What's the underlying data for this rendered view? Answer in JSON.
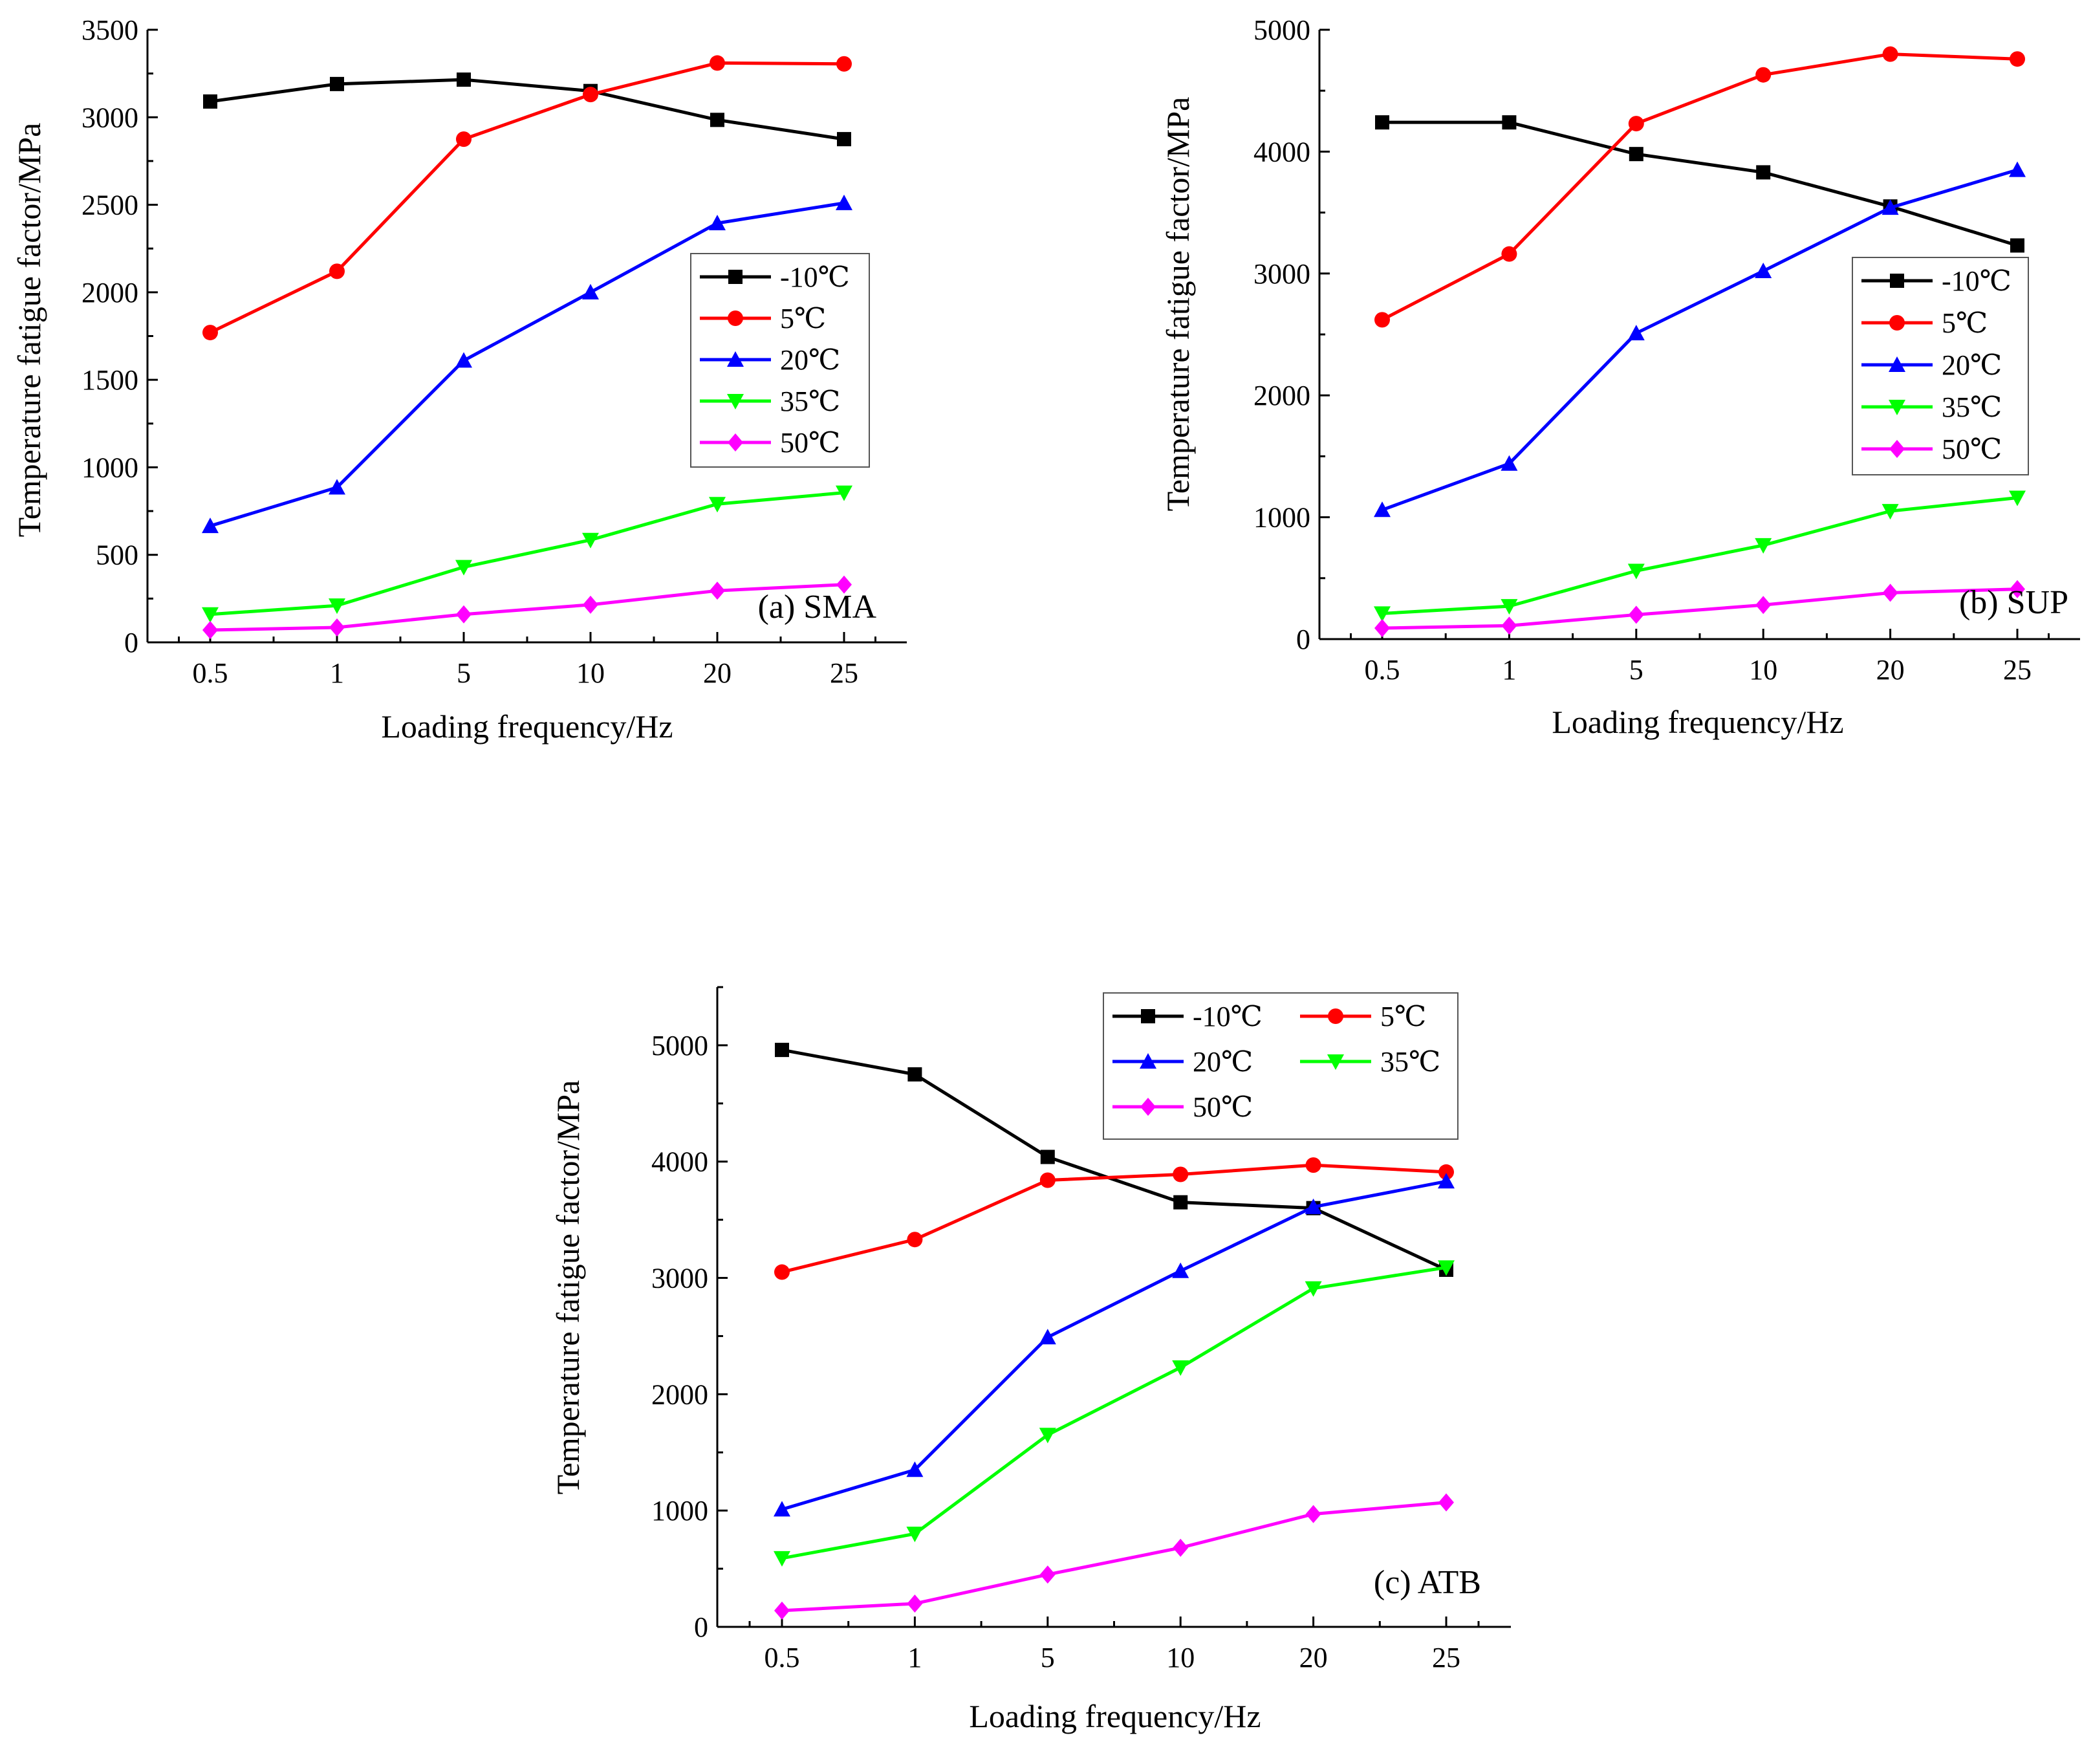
{
  "chart_data": [
    {
      "type": "line",
      "panel_label": "(a)  SMA",
      "xlabel": "Loading frequency/Hz",
      "ylabel": "Temperature fatigue factor/MPa",
      "categories": [
        "0.5",
        "1",
        "5",
        "10",
        "20",
        "25"
      ],
      "ylim": [
        0,
        3500
      ],
      "yticks": [
        0,
        500,
        1000,
        1500,
        2000,
        2500,
        3000,
        3500
      ],
      "legend_position": "center-right",
      "series": [
        {
          "name": "-10℃",
          "color": "#000000",
          "marker": "square",
          "values": [
            3090,
            3190,
            3215,
            3150,
            2985,
            2875
          ]
        },
        {
          "name": "5℃",
          "color": "#ff0000",
          "marker": "circle",
          "values": [
            1770,
            2120,
            2875,
            3130,
            3310,
            3305
          ]
        },
        {
          "name": "20℃",
          "color": "#0000ff",
          "marker": "triangle-up",
          "values": [
            665,
            885,
            1610,
            2000,
            2395,
            2510
          ]
        },
        {
          "name": "35℃",
          "color": "#00ff00",
          "marker": "triangle-down",
          "values": [
            160,
            210,
            430,
            585,
            790,
            855
          ]
        },
        {
          "name": "50℃",
          "color": "#ff00ff",
          "marker": "diamond",
          "values": [
            70,
            85,
            160,
            215,
            295,
            330
          ]
        }
      ]
    },
    {
      "type": "line",
      "panel_label": "(b)  SUP",
      "xlabel": "Loading frequency/Hz",
      "ylabel": "Temperature fatigue factor/MPa",
      "categories": [
        "0.5",
        "1",
        "5",
        "10",
        "20",
        "25"
      ],
      "ylim": [
        0,
        5000
      ],
      "yticks": [
        0,
        1000,
        2000,
        3000,
        4000,
        5000
      ],
      "legend_position": "center-right",
      "series": [
        {
          "name": "-10℃",
          "color": "#000000",
          "marker": "square",
          "values": [
            4240,
            4240,
            3980,
            3830,
            3550,
            3230
          ]
        },
        {
          "name": "5℃",
          "color": "#ff0000",
          "marker": "circle",
          "values": [
            2620,
            3160,
            4230,
            4630,
            4800,
            4760
          ]
        },
        {
          "name": "20℃",
          "color": "#0000ff",
          "marker": "triangle-up",
          "values": [
            1060,
            1440,
            2510,
            3020,
            3540,
            3850
          ]
        },
        {
          "name": "35℃",
          "color": "#00ff00",
          "marker": "triangle-down",
          "values": [
            210,
            270,
            560,
            770,
            1050,
            1160
          ]
        },
        {
          "name": "50℃",
          "color": "#ff00ff",
          "marker": "diamond",
          "values": [
            90,
            110,
            200,
            280,
            380,
            410
          ]
        }
      ]
    },
    {
      "type": "line",
      "panel_label": "(c)  ATB",
      "xlabel": "Loading frequency/Hz",
      "ylabel": "Temperature fatigue factor/MPa",
      "categories": [
        "0.5",
        "1",
        "5",
        "10",
        "20",
        "25"
      ],
      "ylim": [
        0,
        5500
      ],
      "yticks": [
        0,
        1000,
        2000,
        3000,
        4000,
        5000
      ],
      "legend_position": "top-right",
      "series": [
        {
          "name": "-10℃",
          "color": "#000000",
          "marker": "square",
          "values": [
            4960,
            4750,
            4040,
            3650,
            3600,
            3070
          ]
        },
        {
          "name": "5℃",
          "color": "#ff0000",
          "marker": "circle",
          "values": [
            3050,
            3330,
            3840,
            3890,
            3970,
            3910
          ]
        },
        {
          "name": "20℃",
          "color": "#0000ff",
          "marker": "triangle-up",
          "values": [
            1010,
            1350,
            2490,
            3060,
            3610,
            3830
          ]
        },
        {
          "name": "35℃",
          "color": "#00ff00",
          "marker": "triangle-down",
          "values": [
            590,
            800,
            1650,
            2230,
            2910,
            3090
          ]
        },
        {
          "name": "50℃",
          "color": "#ff00ff",
          "marker": "diamond",
          "values": [
            140,
            200,
            450,
            680,
            970,
            1070
          ]
        }
      ]
    }
  ]
}
